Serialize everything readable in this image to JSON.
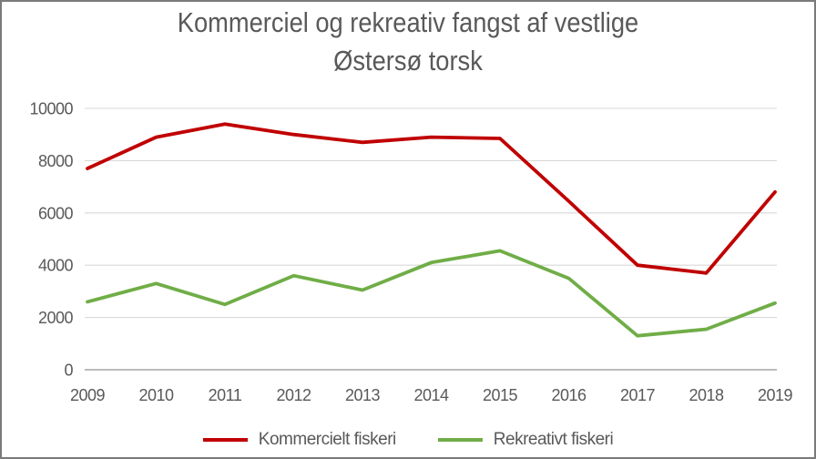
{
  "chart_data": {
    "type": "line",
    "title": "Kommerciel og rekreativ fangst af vestlige Østersø torsk",
    "title_lines": [
      "Kommerciel og rekreativ fangst af vestlige",
      "Østersø torsk"
    ],
    "categories": [
      "2009",
      "2010",
      "2011",
      "2012",
      "2013",
      "2014",
      "2015",
      "2016",
      "2017",
      "2018",
      "2019"
    ],
    "series": [
      {
        "name": "Kommercielt fiskeri",
        "color": "#C00000",
        "values": [
          7700,
          8900,
          9400,
          9000,
          8700,
          8900,
          8850,
          6450,
          4000,
          3700,
          6800
        ]
      },
      {
        "name": "Rekreativt fiskeri",
        "color": "#70AD47",
        "values": [
          2600,
          3300,
          2500,
          3600,
          3050,
          4100,
          4550,
          3500,
          1300,
          1550,
          2550
        ]
      }
    ],
    "xlabel": "",
    "ylabel": "",
    "ylim": [
      0,
      10000
    ],
    "yticks": [
      0,
      2000,
      4000,
      6000,
      8000,
      10000
    ],
    "grid": true,
    "legend_position": "bottom",
    "colors": {
      "grid_line": "#D9D9D9",
      "axis_line": "#A6A6A6",
      "tick_text": "#595959",
      "title_text": "#595959",
      "frame_border": "#7A7A7A",
      "background": "#FFFFFF"
    }
  }
}
